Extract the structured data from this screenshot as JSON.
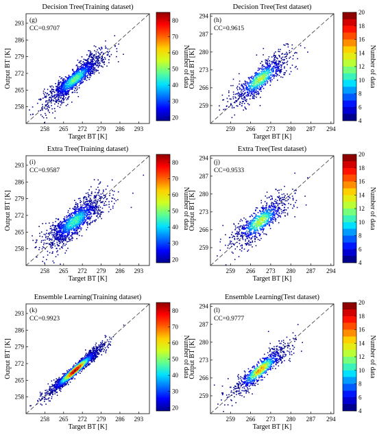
{
  "figure": {
    "xlabel": "Target BT [K]",
    "ylabel": "Output BT [K]",
    "colorbar_label": "Number of data",
    "colormap": [
      "#00008f",
      "#0000ff",
      "#0070ff",
      "#00e0ff",
      "#60ff90",
      "#d0ff20",
      "#ffd000",
      "#ff6000",
      "#ff0000",
      "#8f0000"
    ]
  },
  "chart_data": [
    {
      "type": "heatmap",
      "panel": "(g)",
      "title": "Decision Tree(Training dataset)",
      "cc": "CC=0.9707",
      "xlim": [
        251,
        297
      ],
      "ylim": [
        251,
        297
      ],
      "xticks": [
        258,
        265,
        272,
        279,
        286,
        293
      ],
      "yticks": [
        258,
        265,
        272,
        279,
        286,
        293
      ],
      "colorbar": {
        "min": 18,
        "max": 85,
        "ticks": [
          20,
          30,
          40,
          50,
          60,
          70,
          80
        ]
      },
      "scatter_center": [
        269,
        269.8
      ],
      "spread_along": 7.4,
      "spread_across": 1.7,
      "peak_level": 0.45
    },
    {
      "type": "heatmap",
      "panel": "(h)",
      "title": "Decision Tree(Test dataset)",
      "cc": "CC=0.9615",
      "xlim": [
        252,
        295
      ],
      "ylim": [
        252,
        295
      ],
      "xticks": [
        259,
        266,
        273,
        280,
        287,
        294
      ],
      "yticks": [
        259,
        266,
        273,
        280,
        287,
        294
      ],
      "colorbar": {
        "min": 4,
        "max": 20,
        "ticks": [
          4,
          6,
          8,
          10,
          12,
          14,
          16,
          18,
          20
        ]
      },
      "scatter_center": [
        269.2,
        269.6
      ],
      "spread_along": 6.6,
      "spread_across": 2.0,
      "peak_level": 0.55
    },
    {
      "type": "heatmap",
      "panel": "(i)",
      "title": "Extra Tree(Training dataset)",
      "cc": "CC=0.9587",
      "xlim": [
        251,
        297
      ],
      "ylim": [
        251,
        297
      ],
      "xticks": [
        258,
        265,
        272,
        279,
        286,
        293
      ],
      "yticks": [
        258,
        265,
        272,
        279,
        286,
        293
      ],
      "colorbar": {
        "min": 18,
        "max": 85,
        "ticks": [
          20,
          30,
          40,
          50,
          60,
          70,
          80
        ]
      },
      "scatter_center": [
        269,
        269.8
      ],
      "spread_along": 7.4,
      "spread_across": 2.3,
      "peak_level": 0.42
    },
    {
      "type": "heatmap",
      "panel": "(j)",
      "title": "Extra Tree(Test dataset)",
      "cc": "CC=0.9533",
      "xlim": [
        252,
        295
      ],
      "ylim": [
        252,
        295
      ],
      "xticks": [
        259,
        266,
        273,
        280,
        287,
        294
      ],
      "yticks": [
        259,
        266,
        273,
        280,
        287,
        294
      ],
      "colorbar": {
        "min": 4,
        "max": 20,
        "ticks": [
          4,
          6,
          8,
          10,
          12,
          14,
          16,
          18,
          20
        ]
      },
      "scatter_center": [
        269.2,
        269.6
      ],
      "spread_along": 6.6,
      "spread_across": 2.2,
      "peak_level": 0.55
    },
    {
      "type": "heatmap",
      "panel": "(k)",
      "title": "Ensemble Learning(Training dataset)",
      "cc": "CC=0.9923",
      "xlim": [
        251,
        297
      ],
      "ylim": [
        251,
        297
      ],
      "xticks": [
        258,
        265,
        272,
        279,
        286,
        293
      ],
      "yticks": [
        258,
        265,
        272,
        279,
        286,
        293
      ],
      "colorbar": {
        "min": 18,
        "max": 85,
        "ticks": [
          20,
          30,
          40,
          50,
          60,
          70,
          80
        ]
      },
      "scatter_center": [
        269,
        269.3
      ],
      "spread_along": 7.4,
      "spread_across": 0.9,
      "peak_level": 0.95
    },
    {
      "type": "heatmap",
      "panel": "(l)",
      "title": "Ensemble Learning(Test dataset)",
      "cc": "CC=0.9777",
      "xlim": [
        252,
        295
      ],
      "ylim": [
        252,
        295
      ],
      "xticks": [
        259,
        266,
        273,
        280,
        287,
        294
      ],
      "yticks": [
        259,
        266,
        273,
        280,
        287,
        294
      ],
      "colorbar": {
        "min": 4,
        "max": 20,
        "ticks": [
          4,
          6,
          8,
          10,
          12,
          14,
          16,
          18,
          20
        ]
      },
      "scatter_center": [
        269.2,
        269.4
      ],
      "spread_along": 6.6,
      "spread_across": 1.5,
      "peak_level": 0.7
    }
  ]
}
